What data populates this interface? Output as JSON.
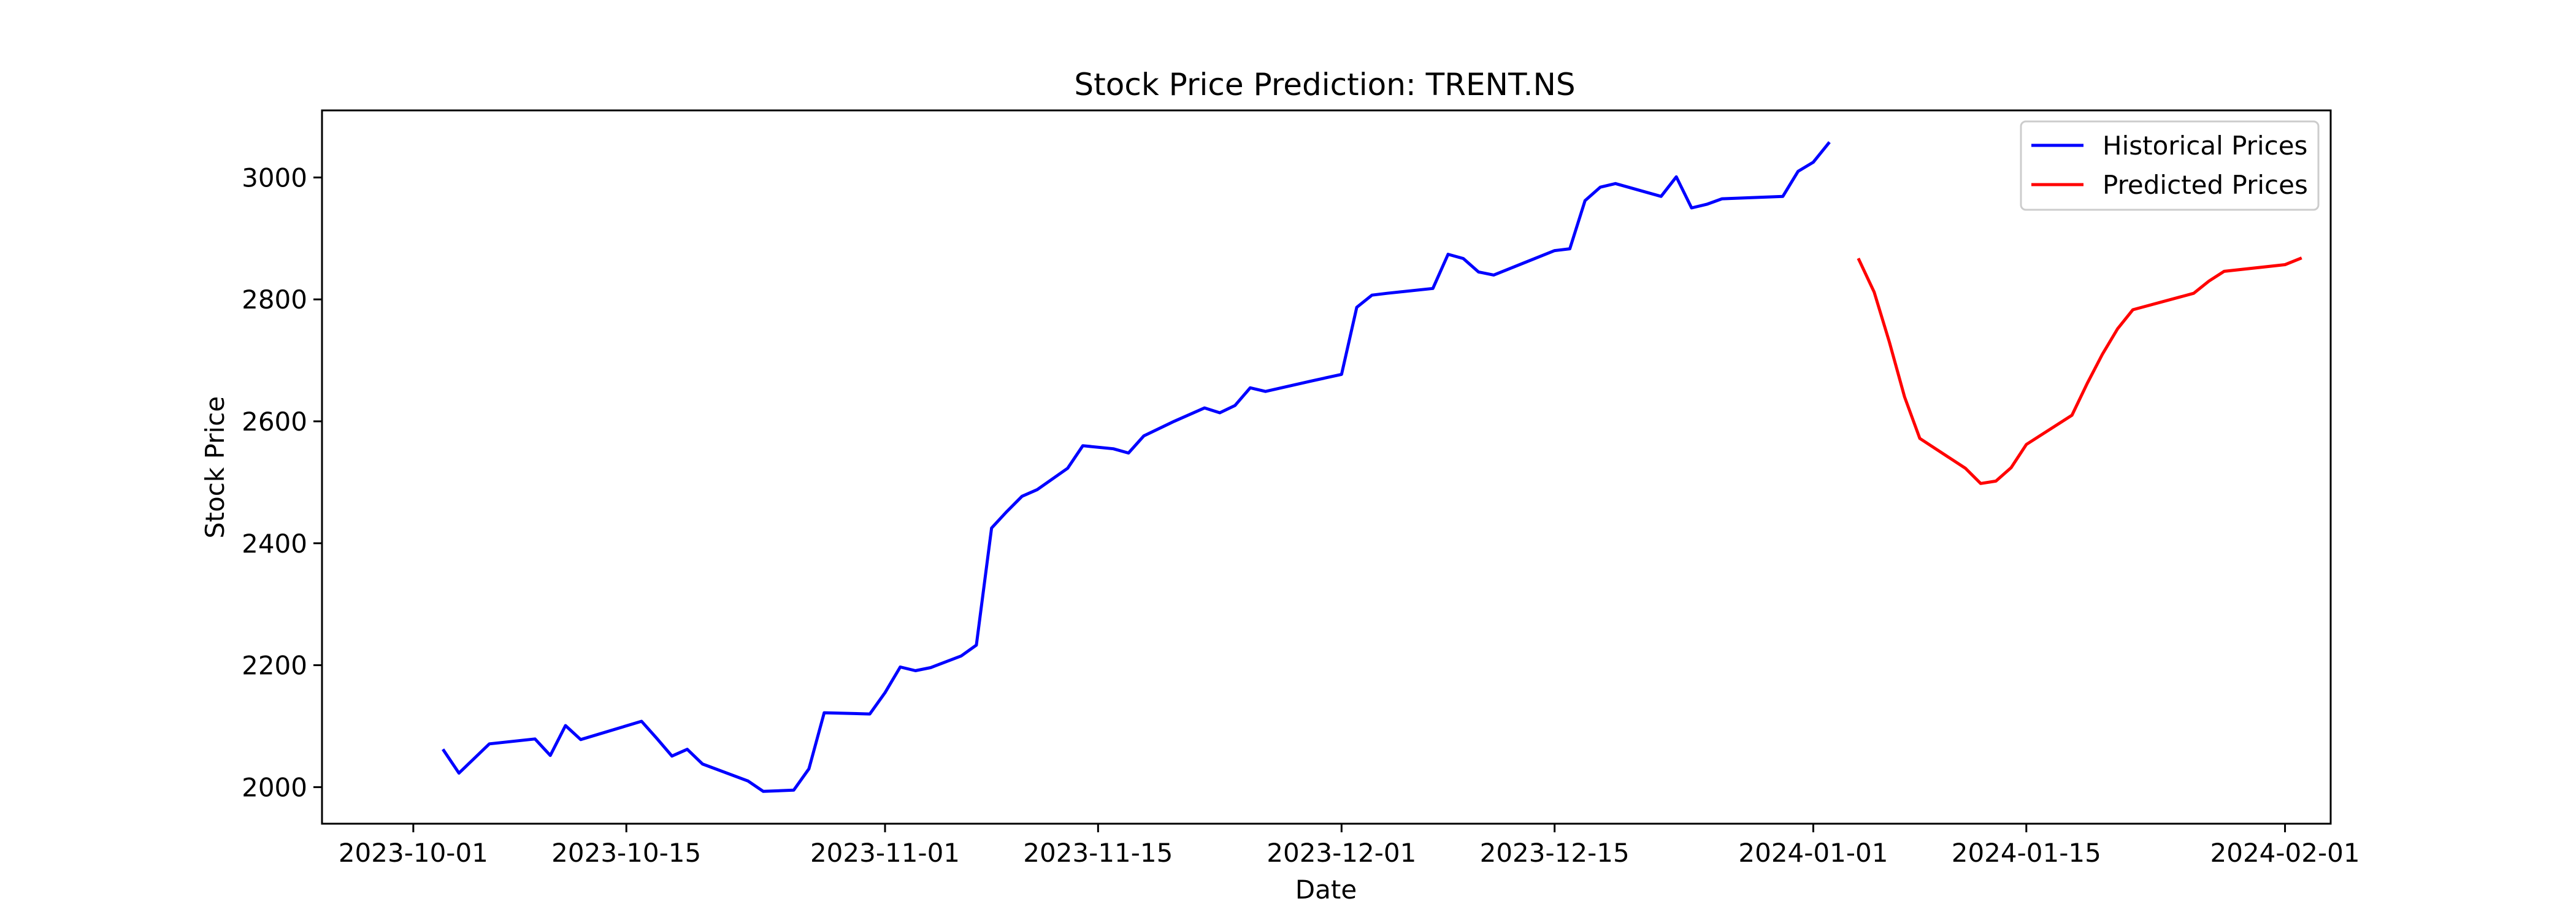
{
  "chart_data": {
    "type": "line",
    "title": "Stock Price Prediction: TRENT.NS",
    "xlabel": "Date",
    "ylabel": "Stock Price",
    "xlim": [
      "2023-09-25",
      "2024-02-04"
    ],
    "ylim": [
      1940,
      3110
    ],
    "x_ticks": [
      "2023-10-01",
      "2023-10-15",
      "2023-11-01",
      "2023-11-15",
      "2023-12-01",
      "2023-12-15",
      "2024-01-01",
      "2024-01-15",
      "2024-02-01"
    ],
    "y_ticks": [
      2000,
      2200,
      2400,
      2600,
      2800,
      3000
    ],
    "grid": false,
    "legend_position": "upper right",
    "series": [
      {
        "name": "Historical Prices",
        "color": "#0000ff",
        "points": [
          [
            "2023-10-03",
            2060
          ],
          [
            "2023-10-04",
            2023
          ],
          [
            "2023-10-06",
            2071
          ],
          [
            "2023-10-09",
            2079
          ],
          [
            "2023-10-10",
            2052
          ],
          [
            "2023-10-11",
            2101
          ],
          [
            "2023-10-12",
            2078
          ],
          [
            "2023-10-16",
            2108
          ],
          [
            "2023-10-17",
            2080
          ],
          [
            "2023-10-18",
            2051
          ],
          [
            "2023-10-19",
            2062
          ],
          [
            "2023-10-20",
            2038
          ],
          [
            "2023-10-23",
            2010
          ],
          [
            "2023-10-24",
            1993
          ],
          [
            "2023-10-26",
            1995
          ],
          [
            "2023-10-27",
            2030
          ],
          [
            "2023-10-28",
            2122
          ],
          [
            "2023-10-31",
            2120
          ],
          [
            "2023-11-01",
            2155
          ],
          [
            "2023-11-02",
            2197
          ],
          [
            "2023-11-03",
            2191
          ],
          [
            "2023-11-04",
            2196
          ],
          [
            "2023-11-06",
            2215
          ],
          [
            "2023-11-07",
            2233
          ],
          [
            "2023-11-08",
            2425
          ],
          [
            "2023-11-09",
            2452
          ],
          [
            "2023-11-10",
            2477
          ],
          [
            "2023-11-11",
            2488
          ],
          [
            "2023-11-13",
            2523
          ],
          [
            "2023-11-14",
            2560
          ],
          [
            "2023-11-16",
            2555
          ],
          [
            "2023-11-17",
            2548
          ],
          [
            "2023-11-18",
            2576
          ],
          [
            "2023-11-20",
            2600
          ],
          [
            "2023-11-22",
            2622
          ],
          [
            "2023-11-23",
            2614
          ],
          [
            "2023-11-24",
            2626
          ],
          [
            "2023-11-25",
            2655
          ],
          [
            "2023-11-26",
            2649
          ],
          [
            "2023-11-29",
            2666
          ],
          [
            "2023-12-01",
            2677
          ],
          [
            "2023-12-02",
            2787
          ],
          [
            "2023-12-03",
            2807
          ],
          [
            "2023-12-04",
            2810
          ],
          [
            "2023-12-07",
            2818
          ],
          [
            "2023-12-08",
            2874
          ],
          [
            "2023-12-09",
            2867
          ],
          [
            "2023-12-10",
            2845
          ],
          [
            "2023-12-11",
            2840
          ],
          [
            "2023-12-13",
            2860
          ],
          [
            "2023-12-15",
            2880
          ],
          [
            "2023-12-16",
            2883
          ],
          [
            "2023-12-17",
            2962
          ],
          [
            "2023-12-18",
            2984
          ],
          [
            "2023-12-19",
            2990
          ],
          [
            "2023-12-22",
            2969
          ],
          [
            "2023-12-23",
            3001
          ],
          [
            "2023-12-24",
            2950
          ],
          [
            "2023-12-25",
            2956
          ],
          [
            "2023-12-26",
            2965
          ],
          [
            "2023-12-30",
            2969
          ],
          [
            "2023-12-31",
            3010
          ],
          [
            "2024-01-01",
            3025
          ],
          [
            "2024-01-02",
            3056
          ]
        ]
      },
      {
        "name": "Predicted Prices",
        "color": "#ff0000",
        "points": [
          [
            "2024-01-04",
            2865
          ],
          [
            "2024-01-05",
            2812
          ],
          [
            "2024-01-06",
            2730
          ],
          [
            "2024-01-07",
            2640
          ],
          [
            "2024-01-08",
            2572
          ],
          [
            "2024-01-11",
            2523
          ],
          [
            "2024-01-12",
            2498
          ],
          [
            "2024-01-13",
            2502
          ],
          [
            "2024-01-14",
            2524
          ],
          [
            "2024-01-15",
            2562
          ],
          [
            "2024-01-18",
            2610
          ],
          [
            "2024-01-19",
            2662
          ],
          [
            "2024-01-20",
            2710
          ],
          [
            "2024-01-21",
            2752
          ],
          [
            "2024-01-22",
            2783
          ],
          [
            "2024-01-26",
            2810
          ],
          [
            "2024-01-27",
            2830
          ],
          [
            "2024-01-28",
            2846
          ],
          [
            "2024-02-01",
            2857
          ],
          [
            "2024-02-02",
            2867
          ]
        ]
      }
    ]
  }
}
